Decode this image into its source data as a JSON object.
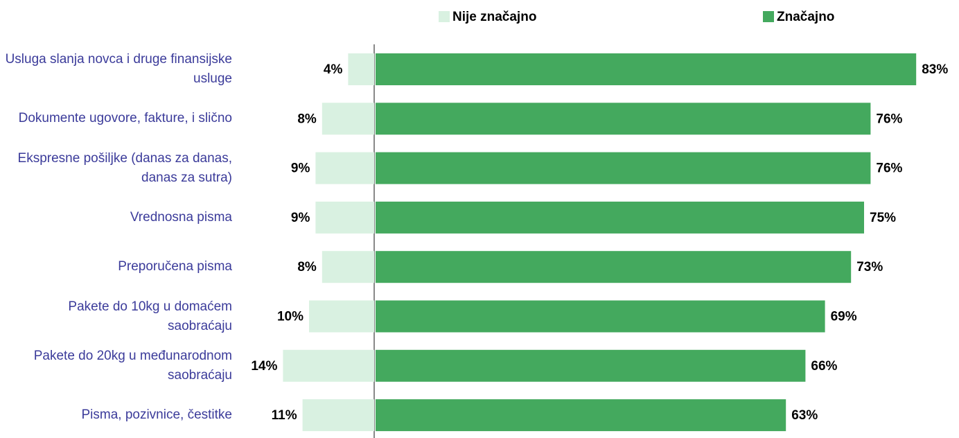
{
  "chart_data": {
    "type": "diverging-bar",
    "categories": [
      "Usluga slanja novca i druge finansijske usluge",
      "Dokumente ugovore, fakture, i slično",
      "Ekspresne pošiljke (danas za danas, danas za sutra)",
      "Vrednosna pisma",
      "Preporučena pisma",
      "Pakete do 10kg u domaćem saobraćaju",
      "Pakete do 20kg u međunarodnom saobraćaju",
      "Pisma, pozivnice, čestitke"
    ],
    "series": [
      {
        "name": "Nije značajno",
        "color": "#d9f1e1",
        "values": [
          4,
          8,
          9,
          9,
          8,
          10,
          14,
          11
        ],
        "value_labels": [
          "4%",
          "8%",
          "9%",
          "9%",
          "8%",
          "10%",
          "14%",
          "11%"
        ]
      },
      {
        "name": "Značajno",
        "color": "#44a95e",
        "values": [
          83,
          76,
          76,
          75,
          73,
          69,
          66,
          63
        ],
        "value_labels": [
          "83%",
          "76%",
          "76%",
          "75%",
          "73%",
          "69%",
          "66%",
          "63%"
        ]
      }
    ],
    "legend": "top"
  }
}
